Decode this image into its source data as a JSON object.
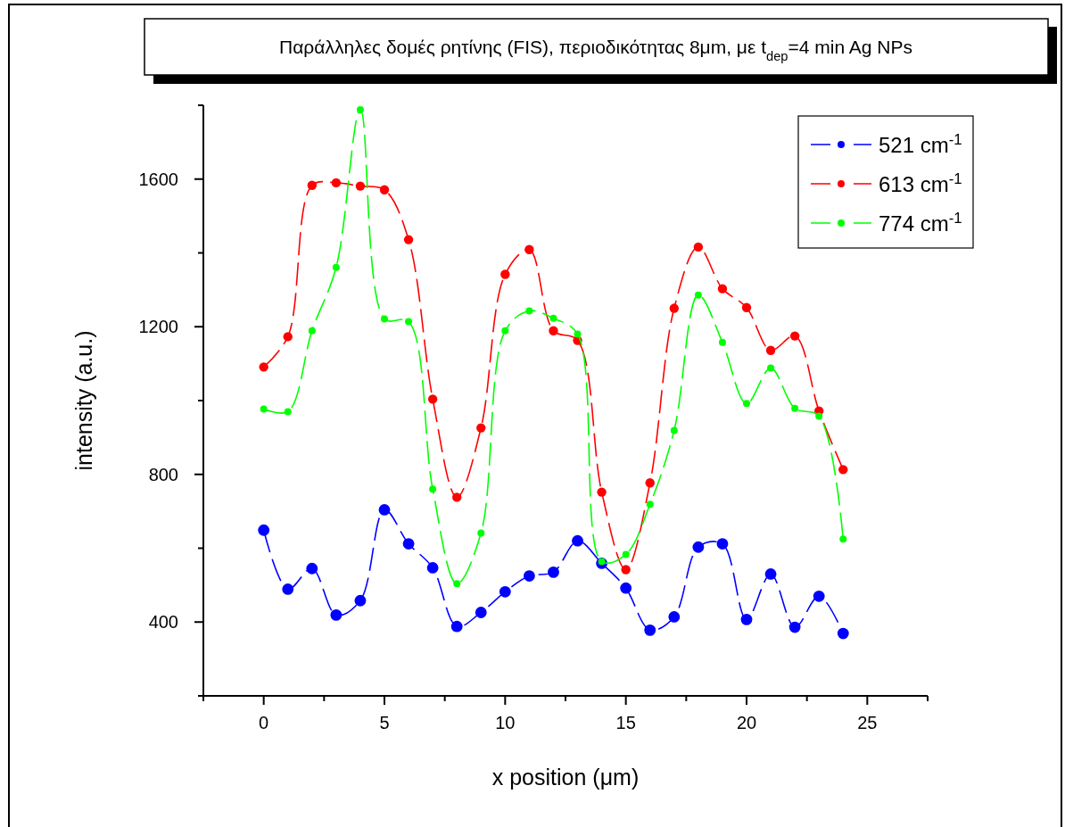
{
  "chart_data": {
    "type": "line",
    "title": "Παράλληλες δομές ρητίνης (FIS), περιοδικότητας 8μm, με t$_{dep}$=4 min Ag NPs",
    "xlabel": "x position (μm)",
    "ylabel": "intensity (a.u.)",
    "x": [
      0,
      1,
      2,
      3,
      4,
      5,
      6,
      7,
      8,
      9,
      10,
      11,
      12,
      13,
      14,
      15,
      16,
      17,
      18,
      19,
      20,
      21,
      22,
      23,
      24
    ],
    "series": [
      {
        "name": "521 cm$^{-1}$",
        "color": "#0000ff",
        "values": [
          649,
          489,
          545,
          419,
          458,
          704,
          612,
          547,
          388,
          426,
          482,
          525,
          535,
          620,
          559,
          492,
          378,
          414,
          603,
          612,
          407,
          530,
          386,
          470,
          369
        ]
      },
      {
        "name": "613 cm$^{-1}$",
        "color": "#ff0000",
        "values": [
          1091,
          1173,
          1583,
          1590,
          1581,
          1571,
          1436,
          1004,
          738,
          926,
          1342,
          1409,
          1189,
          1163,
          752,
          542,
          777,
          1250,
          1416,
          1303,
          1252,
          1136,
          1175,
          972,
          813
        ]
      },
      {
        "name": "774 cm$^{-1}$",
        "color": "#00ff00",
        "values": [
          977,
          970,
          1189,
          1361,
          1788,
          1221,
          1214,
          760,
          504,
          641,
          1189,
          1243,
          1223,
          1180,
          564,
          583,
          719,
          919,
          1286,
          1158,
          992,
          1088,
          979,
          958,
          625
        ]
      }
    ],
    "xlim": [
      -2.5,
      27.5
    ],
    "xticks": [
      {
        "value": -2.5,
        "label": null
      },
      0,
      {
        "value": 2.5,
        "label": null
      },
      5,
      {
        "value": 7.5,
        "label": null
      },
      10,
      {
        "value": 12.5,
        "label": null
      },
      15,
      {
        "value": 17.5,
        "label": null
      },
      20,
      {
        "value": 22.5,
        "label": null
      },
      25,
      {
        "value": 27.5,
        "label": null
      }
    ],
    "ylim": [
      200,
      1800
    ],
    "yticks": [
      {
        "value": 200,
        "label": null
      },
      400,
      {
        "value": 600,
        "label": null
      },
      800,
      {
        "value": 1000,
        "label": null
      },
      1200,
      {
        "value": 1400,
        "label": null
      },
      1600,
      {
        "value": 1800,
        "label": null
      }
    ],
    "grid": false,
    "legend": "top right",
    "marker": "circle",
    "line_style": "dashed"
  }
}
